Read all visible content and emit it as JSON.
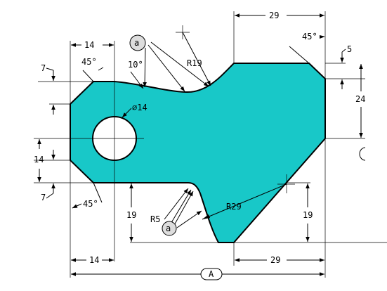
{
  "drawing": {
    "part_fill": "#18c8c8",
    "labels": {
      "dim_top_left_14": "14",
      "dim_top_right_29": "29",
      "angle_top_left": "45°",
      "angle_top_right": "45°",
      "angle_10": "10°",
      "radius_19": "R19",
      "dim_5": "5",
      "dim_24": "24",
      "dim_left_7_top": "7",
      "dim_left_14": "14",
      "dim_left_7_bottom": "7",
      "diameter_14": "∅14",
      "angle_bottom_left": "45°",
      "dim_bottom_19_left": "19",
      "radius_5": "R5",
      "radius_29": "R29",
      "dim_bottom_19_right": "19",
      "dim_bottom_left_14": "14",
      "dim_bottom_right_29": "29",
      "overall_A": "A",
      "symbol_top": "a",
      "symbol_bottom": "a"
    }
  }
}
